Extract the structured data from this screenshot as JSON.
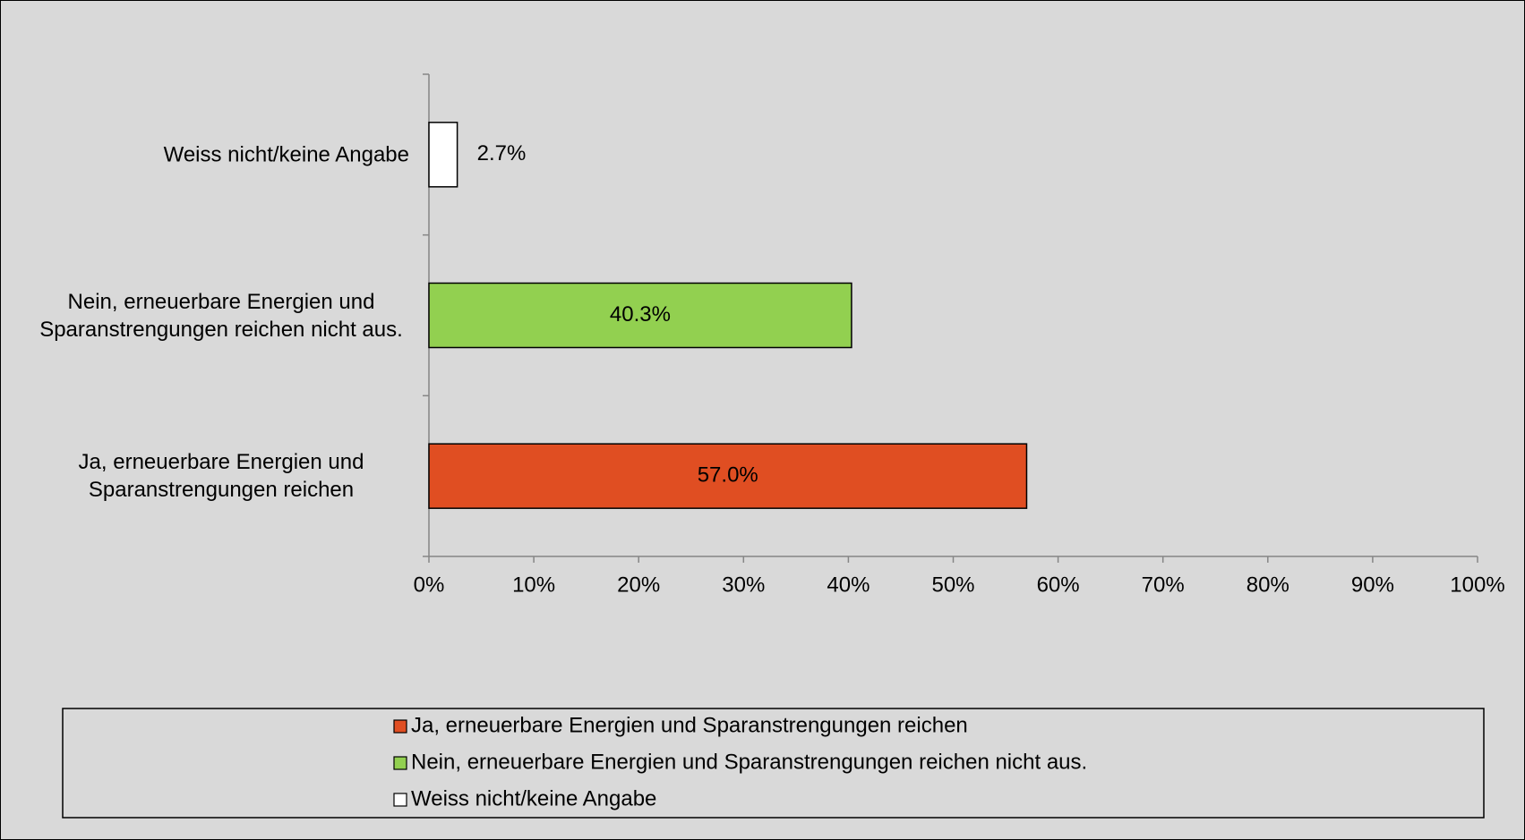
{
  "chart_data": {
    "type": "barh",
    "categories": [
      "Ja, erneuerbare Energien und Sparanstrengungen reichen",
      "Nein, erneuerbare Energien und Sparanstrengungen reichen nicht aus.",
      "Weiss nicht/keine Angabe"
    ],
    "values": [
      57.0,
      40.3,
      2.7
    ],
    "value_labels": [
      "57.0%",
      "40.3%",
      "2.7%"
    ],
    "colors": [
      "#e04e22",
      "#92d050",
      "#ffffff"
    ],
    "xlim": [
      0,
      100
    ],
    "xticks": [
      {
        "value": 0,
        "label": "0%"
      },
      {
        "value": 10,
        "label": "10%"
      },
      {
        "value": 20,
        "label": "20%"
      },
      {
        "value": 30,
        "label": "30%"
      },
      {
        "value": 40,
        "label": "40%"
      },
      {
        "value": 50,
        "label": "50%"
      },
      {
        "value": 60,
        "label": "60%"
      },
      {
        "value": 70,
        "label": "70%"
      },
      {
        "value": 80,
        "label": "80%"
      },
      {
        "value": 90,
        "label": "90%"
      },
      {
        "value": 100,
        "label": "100%"
      }
    ],
    "legend": "bottom"
  }
}
